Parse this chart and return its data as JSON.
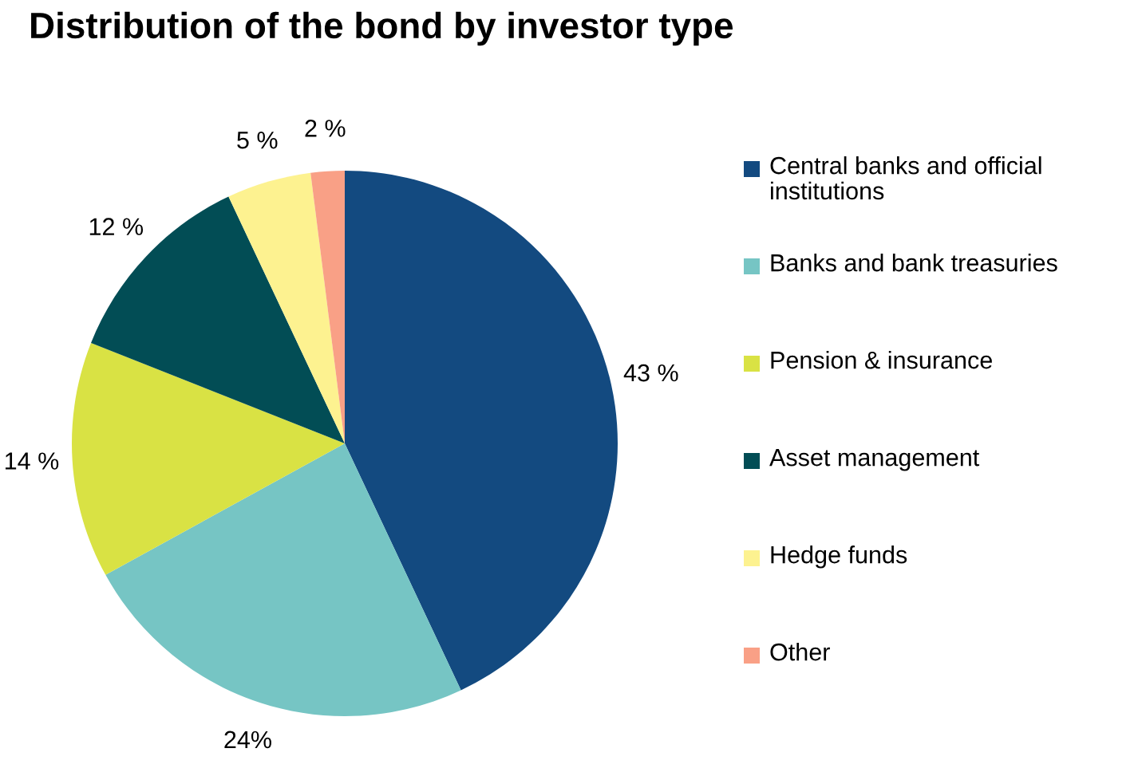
{
  "chart_data": {
    "type": "pie",
    "title": "Distribution of the bond by investor type",
    "categories": [
      "Central banks and official institutions",
      "Banks and bank treasuries",
      "Pension & insurance",
      "Asset management",
      "Hedge funds",
      "Other"
    ],
    "values": [
      43,
      24,
      14,
      12,
      5,
      2
    ],
    "colors": [
      "#134a80",
      "#76c5c4",
      "#d9e244",
      "#024d55",
      "#fdf290",
      "#f9a086"
    ],
    "value_labels": [
      "43 %",
      "24%",
      "14 %",
      "12 %",
      "5 %",
      "2 %"
    ],
    "legend": "right"
  }
}
